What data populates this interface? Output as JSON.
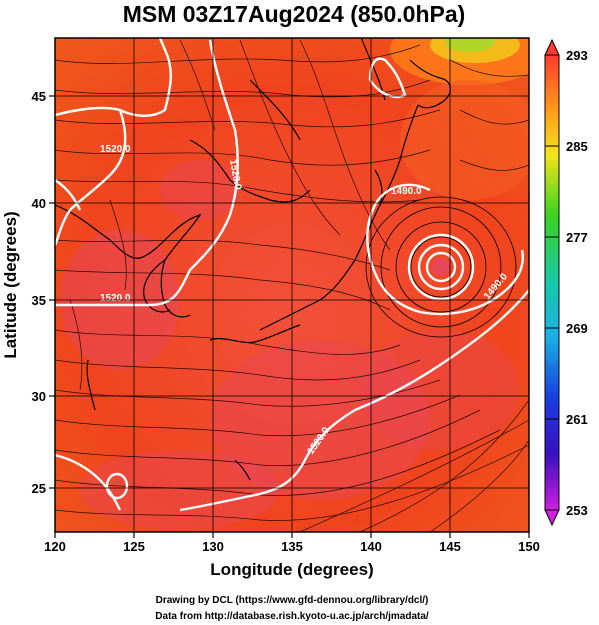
{
  "title": "MSM 03Z17Aug2024 (850.0hPa)",
  "xaxis": {
    "label": "Longitude (degrees)",
    "ticks": [
      "120",
      "125",
      "130",
      "135",
      "140",
      "145",
      "150"
    ],
    "values": [
      120,
      125,
      130,
      135,
      140,
      145,
      150
    ],
    "range": [
      120,
      150
    ]
  },
  "yaxis": {
    "label": "Latitude  (degrees)",
    "ticks": [
      "25",
      "30",
      "35",
      "40",
      "45"
    ],
    "values": [
      25,
      30,
      35,
      40,
      45
    ],
    "range": [
      22.5,
      47.8
    ]
  },
  "colorbar": {
    "labels": [
      "293",
      "285",
      "277",
      "269",
      "261",
      "253"
    ],
    "values": [
      293,
      285,
      277,
      269,
      261,
      253
    ],
    "range": [
      253,
      293
    ]
  },
  "contour_labels": [
    "1520.0",
    "1520.0",
    "1520.0",
    "1490.0",
    "1520.0",
    "1490.0"
  ],
  "credits": {
    "line1": "Drawing by DCL (https://www.gfd-dennou.org/library/dcl/)",
    "line2": "Data from http://database.rish.kyoto-u.ac.jp/arch/jmadata/"
  },
  "colors": {
    "warm_field": "#f04a1c",
    "hot_field": "#e8475a",
    "cool_field": "#ff7a1a",
    "contour": "#ffffff",
    "streamline": "#000000"
  }
}
